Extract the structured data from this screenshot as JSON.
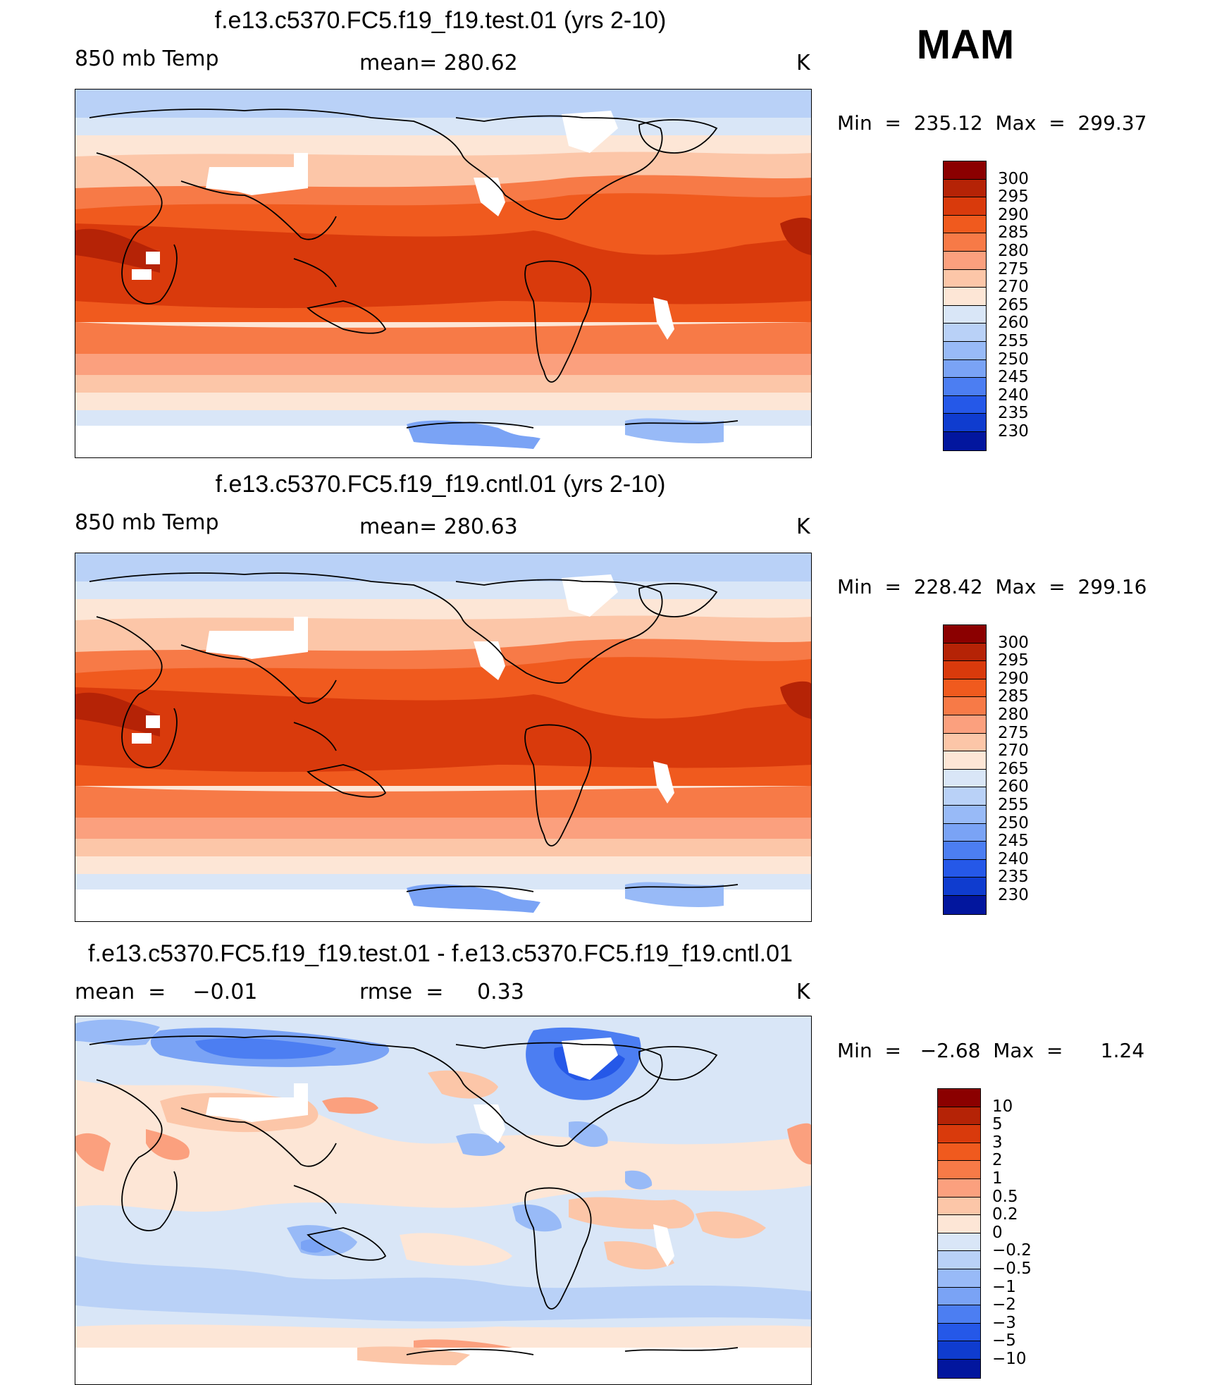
{
  "season": "MAM",
  "panels": [
    {
      "title": "f.e13.c5370.FC5.f19_f19.test.01 (yrs 2-10)",
      "left_label": "850 mb Temp",
      "mid_label": "mean= 280.62",
      "unit": "K",
      "minmax": "Min  =  235.12  Max  =  299.37"
    },
    {
      "title": "f.e13.c5370.FC5.f19_f19.cntl.01 (yrs 2-10)",
      "left_label": "850 mb Temp",
      "mid_label": "mean= 280.63",
      "unit": "K",
      "minmax": "Min  =  228.42  Max  =  299.16"
    },
    {
      "title": "f.e13.c5370.FC5.f19_f19.test.01 - f.e13.c5370.FC5.f19_f19.cntl.01",
      "left_label": "mean  =    −0.01",
      "mid_label": "rmse  =     0.33",
      "unit": "K",
      "minmax": "Min  =   −2.68  Max  =      1.24"
    }
  ],
  "colorbars": {
    "temperature": {
      "labels": [
        "300",
        "295",
        "290",
        "285",
        "280",
        "275",
        "270",
        "265",
        "260",
        "255",
        "250",
        "245",
        "240",
        "235",
        "230"
      ],
      "colors": [
        "#8b0000",
        "#b52306",
        "#d93a0c",
        "#f05a1e",
        "#f77a47",
        "#fba07e",
        "#fcc6a8",
        "#fde6d6",
        "#d9e6f7",
        "#b9d1f7",
        "#98baf7",
        "#7aa3f5",
        "#4c7ef2",
        "#2558e8",
        "#0f3ccf",
        "#02169e"
      ]
    },
    "difference": {
      "labels": [
        "10",
        "5",
        "3",
        "2",
        "1",
        "0.5",
        "0.2",
        "0",
        "−0.2",
        "−0.5",
        "−1",
        "−2",
        "−3",
        "−5",
        "−10"
      ],
      "colors": [
        "#8b0000",
        "#b52306",
        "#d93a0c",
        "#f05a1e",
        "#f77a47",
        "#fba07e",
        "#fcc6a8",
        "#fde6d6",
        "#d9e6f7",
        "#b9d1f7",
        "#98baf7",
        "#7aa3f5",
        "#4c7ef2",
        "#2558e8",
        "#0f3ccf",
        "#02169e"
      ]
    }
  }
}
